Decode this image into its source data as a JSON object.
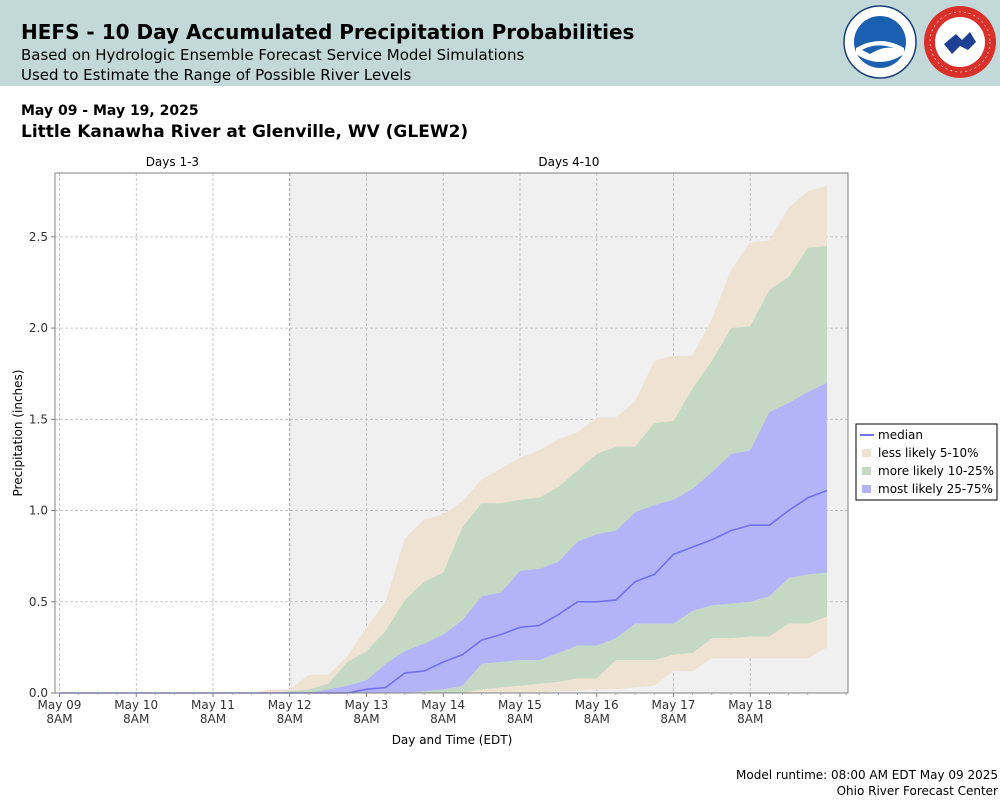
{
  "header": {
    "title": "HEFS - 10 Day Accumulated Precipitation Probabilities",
    "subtitle1": "Based on Hydrologic Ensemble Forecast Service Model Simulations",
    "subtitle2": "Used to Estimate the Range of Possible River Levels"
  },
  "date_range": "May 09 - May 19, 2025",
  "site_name": "Little Kanawha River at Glenville, WV (GLEW2)",
  "footer": {
    "runtime": "Model runtime: 08:00 AM EDT May 09 2025",
    "center": "Ohio River Forecast Center"
  },
  "colors": {
    "header_bg": "#c3d8d8",
    "band_5_10": "#eee3d3",
    "band_10_25": "#c5d8c3",
    "band_25_75": "#b3b3f7",
    "median": "#7171f0",
    "shaded_region": "#f0f0f0"
  },
  "icons": [
    "noaa-logo",
    "nws-logo"
  ],
  "chart_data": {
    "type": "area",
    "xlabel": "Day and Time (EDT)",
    "ylabel": "Precipitation (inches)",
    "ylim": [
      0,
      2.85
    ],
    "y_ticks": [
      "0.0",
      "0.5",
      "1.0",
      "1.5",
      "2.0",
      "2.5"
    ],
    "y_tick_values": [
      0,
      0.5,
      1.0,
      1.5,
      2.0,
      2.5
    ],
    "x_tick_days": [
      0,
      1,
      2,
      3,
      4,
      5,
      6,
      7,
      8,
      9
    ],
    "x_tick_labels": [
      [
        "May 09",
        "8AM"
      ],
      [
        "May 10",
        "8AM"
      ],
      [
        "May 11",
        "8AM"
      ],
      [
        "May 12",
        "8AM"
      ],
      [
        "May 13",
        "8AM"
      ],
      [
        "May 14",
        "8AM"
      ],
      [
        "May 15",
        "8AM"
      ],
      [
        "May 16",
        "8AM"
      ],
      [
        "May 17",
        "8AM"
      ],
      [
        "May 18",
        "8AM"
      ]
    ],
    "xlim_days": [
      -0.05,
      10.3
    ],
    "period_labels": [
      "Days 1-3",
      "Days 4-10"
    ],
    "period_split_day": 3,
    "grid": true,
    "legend_position": "right",
    "legend": [
      "median",
      "less likely 5-10%",
      "more likely 10-25%",
      "most likely 25-75%"
    ],
    "x_days": [
      0,
      0.25,
      0.5,
      0.75,
      1,
      1.25,
      1.5,
      1.75,
      2,
      2.25,
      2.5,
      2.75,
      3,
      3.25,
      3.5,
      3.75,
      4,
      4.25,
      4.5,
      4.75,
      5,
      5.25,
      5.5,
      5.75,
      6,
      6.25,
      6.5,
      6.75,
      7,
      7.25,
      7.5,
      7.75,
      8,
      8.25,
      8.5,
      8.75,
      9,
      9.25,
      9.5,
      9.75,
      10
    ],
    "series": [
      {
        "name": "less likely 5-10%",
        "role": "p95",
        "values": [
          0.0,
          0.0,
          0.0,
          0.0,
          0.0,
          0.0,
          0.0,
          0.0,
          0.0,
          0.0,
          0.0,
          0.02,
          0.02,
          0.1,
          0.1,
          0.2,
          0.36,
          0.5,
          0.85,
          0.95,
          0.98,
          1.05,
          1.17,
          1.23,
          1.29,
          1.33,
          1.39,
          1.43,
          1.51,
          1.51,
          1.6,
          1.82,
          1.85,
          1.85,
          2.05,
          2.32,
          2.47,
          2.48,
          2.66,
          2.75,
          2.78
        ]
      },
      {
        "name": "more likely 10-25%",
        "role": "p90",
        "values": [
          0.0,
          0.0,
          0.0,
          0.0,
          0.0,
          0.0,
          0.0,
          0.0,
          0.0,
          0.0,
          0.0,
          0.0,
          0.01,
          0.02,
          0.05,
          0.17,
          0.23,
          0.34,
          0.51,
          0.61,
          0.66,
          0.91,
          1.04,
          1.04,
          1.06,
          1.07,
          1.13,
          1.22,
          1.31,
          1.35,
          1.35,
          1.48,
          1.49,
          1.67,
          1.82,
          2.0,
          2.01,
          2.21,
          2.28,
          2.44,
          2.45
        ]
      },
      {
        "name": "most likely 25-75%",
        "role": "p75",
        "values": [
          0.0,
          0.0,
          0.0,
          0.0,
          0.0,
          0.0,
          0.0,
          0.0,
          0.0,
          0.0,
          0.0,
          0.0,
          0.0,
          0.0,
          0.02,
          0.04,
          0.07,
          0.16,
          0.23,
          0.27,
          0.32,
          0.4,
          0.53,
          0.55,
          0.67,
          0.68,
          0.72,
          0.83,
          0.87,
          0.89,
          0.99,
          1.03,
          1.06,
          1.12,
          1.21,
          1.31,
          1.33,
          1.54,
          1.59,
          1.65,
          1.7
        ]
      },
      {
        "name": "median",
        "role": "p50",
        "values": [
          0.0,
          0.0,
          0.0,
          0.0,
          0.0,
          0.0,
          0.0,
          0.0,
          0.0,
          0.0,
          0.0,
          0.0,
          0.0,
          0.0,
          0.0,
          0.0,
          0.02,
          0.03,
          0.11,
          0.12,
          0.17,
          0.21,
          0.29,
          0.32,
          0.36,
          0.37,
          0.43,
          0.5,
          0.5,
          0.51,
          0.61,
          0.65,
          0.76,
          0.8,
          0.84,
          0.89,
          0.92,
          0.92,
          1.0,
          1.07,
          1.11
        ]
      },
      {
        "name": "most likely 25-75% lower",
        "role": "p25",
        "values": [
          0.0,
          0.0,
          0.0,
          0.0,
          0.0,
          0.0,
          0.0,
          0.0,
          0.0,
          0.0,
          0.0,
          0.0,
          0.0,
          0.0,
          0.0,
          0.0,
          0.0,
          0.0,
          0.0,
          0.01,
          0.02,
          0.04,
          0.16,
          0.17,
          0.18,
          0.18,
          0.22,
          0.26,
          0.26,
          0.3,
          0.38,
          0.38,
          0.38,
          0.45,
          0.48,
          0.49,
          0.5,
          0.53,
          0.63,
          0.65,
          0.66
        ]
      },
      {
        "name": "more likely 10-25% lower",
        "role": "p10",
        "values": [
          0.0,
          0.0,
          0.0,
          0.0,
          0.0,
          0.0,
          0.0,
          0.0,
          0.0,
          0.0,
          0.0,
          0.0,
          0.0,
          0.0,
          0.0,
          0.0,
          0.0,
          0.0,
          0.0,
          0.0,
          0.0,
          0.0,
          0.02,
          0.03,
          0.04,
          0.05,
          0.06,
          0.08,
          0.08,
          0.18,
          0.18,
          0.18,
          0.21,
          0.22,
          0.3,
          0.3,
          0.31,
          0.31,
          0.38,
          0.38,
          0.42
        ]
      },
      {
        "name": "less likely 5-10% lower",
        "role": "p5",
        "values": [
          0.0,
          0.0,
          0.0,
          0.0,
          0.0,
          0.0,
          0.0,
          0.0,
          0.0,
          0.0,
          0.0,
          0.0,
          0.0,
          0.0,
          0.0,
          0.0,
          0.0,
          0.0,
          0.0,
          0.0,
          0.0,
          0.0,
          0.0,
          0.0,
          0.0,
          0.0,
          0.01,
          0.01,
          0.02,
          0.02,
          0.03,
          0.04,
          0.12,
          0.12,
          0.19,
          0.19,
          0.19,
          0.19,
          0.19,
          0.19,
          0.25
        ]
      }
    ]
  }
}
